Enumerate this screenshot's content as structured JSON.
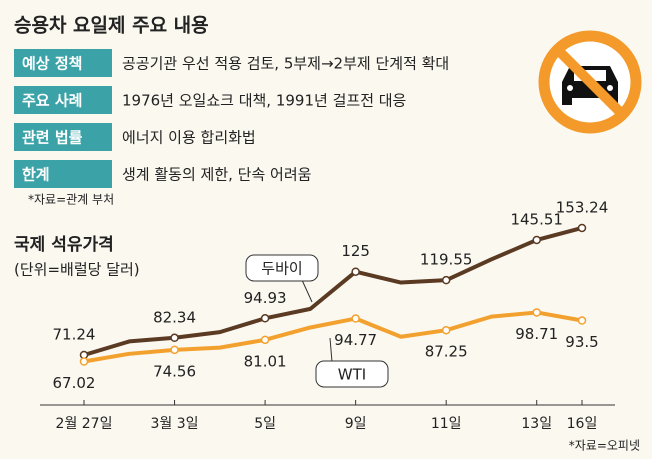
{
  "info": {
    "title": "승용차 요일제 주요 내용",
    "rows": [
      {
        "label": "예상 정책",
        "text": "공공기관 우선 적용 검토, 5부제→2부제 단계적 확대"
      },
      {
        "label": "주요 사례",
        "text": "1976년 오일쇼크 대책, 1991년 걸프전 대응"
      },
      {
        "label": "관련 법률",
        "text": "에너지 이용 합리화법"
      },
      {
        "label": "한계",
        "text": "생계 활동의 제한, 단속 어려움"
      }
    ],
    "source": "*자료=관계 부처"
  },
  "chart_data": {
    "type": "line",
    "title": "국제 석유가격",
    "subtitle": "(단위=배럴당 달러)",
    "categories": [
      "2월 27일",
      null,
      "3월 3일",
      null,
      "5일",
      null,
      "9일",
      null,
      "11일",
      null,
      "13일",
      "16일"
    ],
    "series": [
      {
        "name": "두바이",
        "color": "#5a3a22",
        "values": [
          71.24,
          80,
          82.34,
          86,
          94.93,
          101,
          125,
          118,
          119.55,
          133,
          145.51,
          153.24
        ]
      },
      {
        "name": "WTI",
        "color": "#f2a12e",
        "values": [
          67.02,
          72,
          74.56,
          76,
          81.01,
          89,
          94.77,
          83,
          87.25,
          96,
          98.71,
          93.5
        ]
      }
    ],
    "ylim": [
      60,
      160
    ],
    "source": "*자료=오피넷"
  }
}
